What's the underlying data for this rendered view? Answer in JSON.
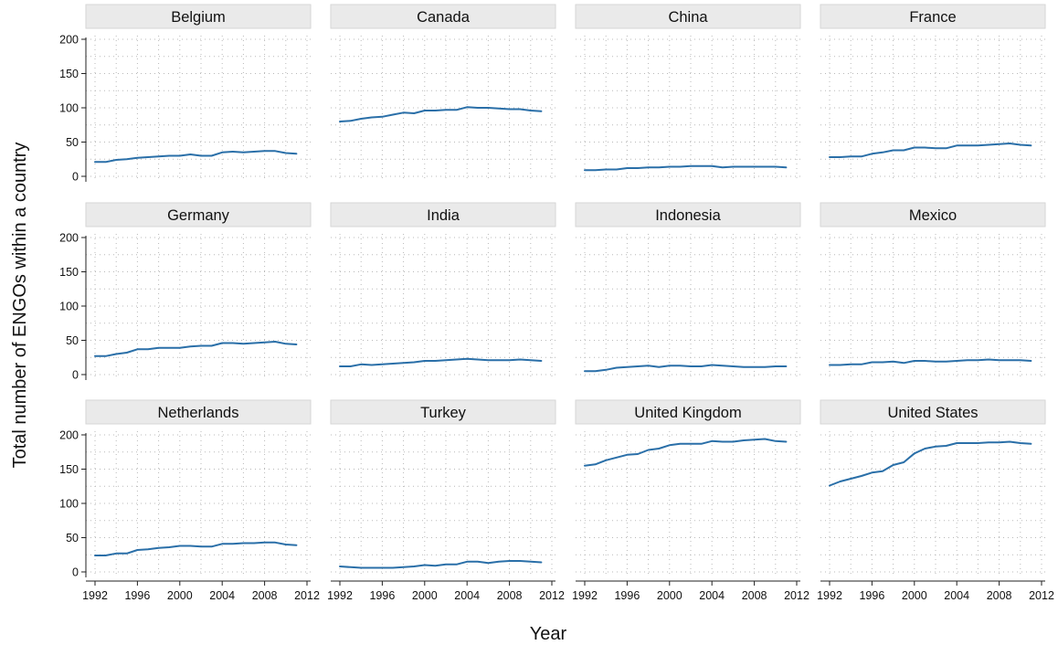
{
  "chart_data": {
    "type": "line",
    "xlabel": "Year",
    "ylabel": "Total number of ENGOs within a country",
    "xlim": [
      1992,
      2012
    ],
    "ylim": [
      0,
      200
    ],
    "x_ticks": [
      "1992",
      "1996",
      "2000",
      "2004",
      "2008",
      "2012"
    ],
    "y_ticks": [
      "0",
      "50",
      "100",
      "150",
      "200"
    ],
    "grid": true,
    "line_color": "#2a6fa8",
    "x": [
      1992,
      1993,
      1994,
      1995,
      1996,
      1997,
      1998,
      1999,
      2000,
      2001,
      2002,
      2003,
      2004,
      2005,
      2006,
      2007,
      2008,
      2009,
      2010,
      2011
    ],
    "panels": [
      {
        "title": "Belgium",
        "values": [
          21,
          21,
          24,
          25,
          27,
          28,
          29,
          30,
          30,
          32,
          30,
          30,
          35,
          36,
          35,
          36,
          37,
          37,
          34,
          33
        ]
      },
      {
        "title": "Canada",
        "values": [
          80,
          81,
          84,
          86,
          87,
          90,
          93,
          92,
          96,
          96,
          97,
          97,
          101,
          100,
          100,
          99,
          98,
          98,
          96,
          95
        ]
      },
      {
        "title": "China",
        "values": [
          9,
          9,
          10,
          10,
          12,
          12,
          13,
          13,
          14,
          14,
          15,
          15,
          15,
          13,
          14,
          14,
          14,
          14,
          14,
          13
        ]
      },
      {
        "title": "France",
        "values": [
          28,
          28,
          29,
          29,
          33,
          35,
          38,
          38,
          42,
          42,
          41,
          41,
          45,
          45,
          45,
          46,
          47,
          48,
          46,
          45
        ]
      },
      {
        "title": "Germany",
        "values": [
          27,
          27,
          30,
          32,
          37,
          37,
          39,
          39,
          39,
          41,
          42,
          42,
          46,
          46,
          45,
          46,
          47,
          48,
          45,
          44
        ]
      },
      {
        "title": "India",
        "values": [
          12,
          12,
          15,
          14,
          15,
          16,
          17,
          18,
          20,
          20,
          21,
          22,
          23,
          22,
          21,
          21,
          21,
          22,
          21,
          20
        ]
      },
      {
        "title": "Indonesia",
        "values": [
          5,
          5,
          7,
          10,
          11,
          12,
          13,
          11,
          13,
          13,
          12,
          12,
          14,
          13,
          12,
          11,
          11,
          11,
          12,
          12
        ]
      },
      {
        "title": "Mexico",
        "values": [
          14,
          14,
          15,
          15,
          18,
          18,
          19,
          17,
          20,
          20,
          19,
          19,
          20,
          21,
          21,
          22,
          21,
          21,
          21,
          20
        ]
      },
      {
        "title": "Netherlands",
        "values": [
          24,
          24,
          27,
          27,
          32,
          33,
          35,
          36,
          38,
          38,
          37,
          37,
          41,
          41,
          42,
          42,
          43,
          43,
          40,
          39
        ]
      },
      {
        "title": "Turkey",
        "values": [
          8,
          7,
          6,
          6,
          6,
          6,
          7,
          8,
          10,
          9,
          11,
          11,
          15,
          15,
          13,
          15,
          16,
          16,
          15,
          14
        ]
      },
      {
        "title": "United Kingdom",
        "values": [
          155,
          157,
          163,
          167,
          171,
          172,
          178,
          180,
          185,
          187,
          187,
          187,
          191,
          190,
          190,
          192,
          193,
          194,
          191,
          190
        ]
      },
      {
        "title": "United States",
        "values": [
          126,
          132,
          136,
          140,
          145,
          147,
          156,
          160,
          173,
          180,
          183,
          184,
          188,
          188,
          188,
          189,
          189,
          190,
          188,
          187
        ]
      }
    ]
  }
}
